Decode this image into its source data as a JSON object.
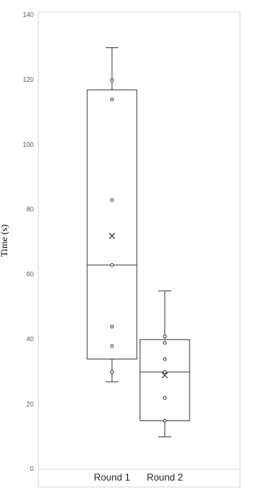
{
  "chart_data": {
    "type": "box",
    "y_label": "Time (s)",
    "categories": [
      "Round 1",
      "Round 2"
    ],
    "series": [
      {
        "min": 27,
        "q1": 34,
        "median": 63,
        "q3": 117,
        "max": 130,
        "mean": 72,
        "points": [
          120,
          114,
          83,
          63,
          44,
          38,
          30
        ]
      },
      {
        "min": 10,
        "q1": 15,
        "median": 30,
        "q3": 40,
        "max": 55,
        "mean": 29,
        "points": [
          41,
          39,
          34,
          30,
          22,
          15
        ]
      }
    ],
    "color": "#404040",
    "ylim": [
      0,
      140
    ],
    "yticks": [
      0,
      20,
      40,
      60,
      80,
      100,
      120,
      140
    ],
    "grid": false
  }
}
